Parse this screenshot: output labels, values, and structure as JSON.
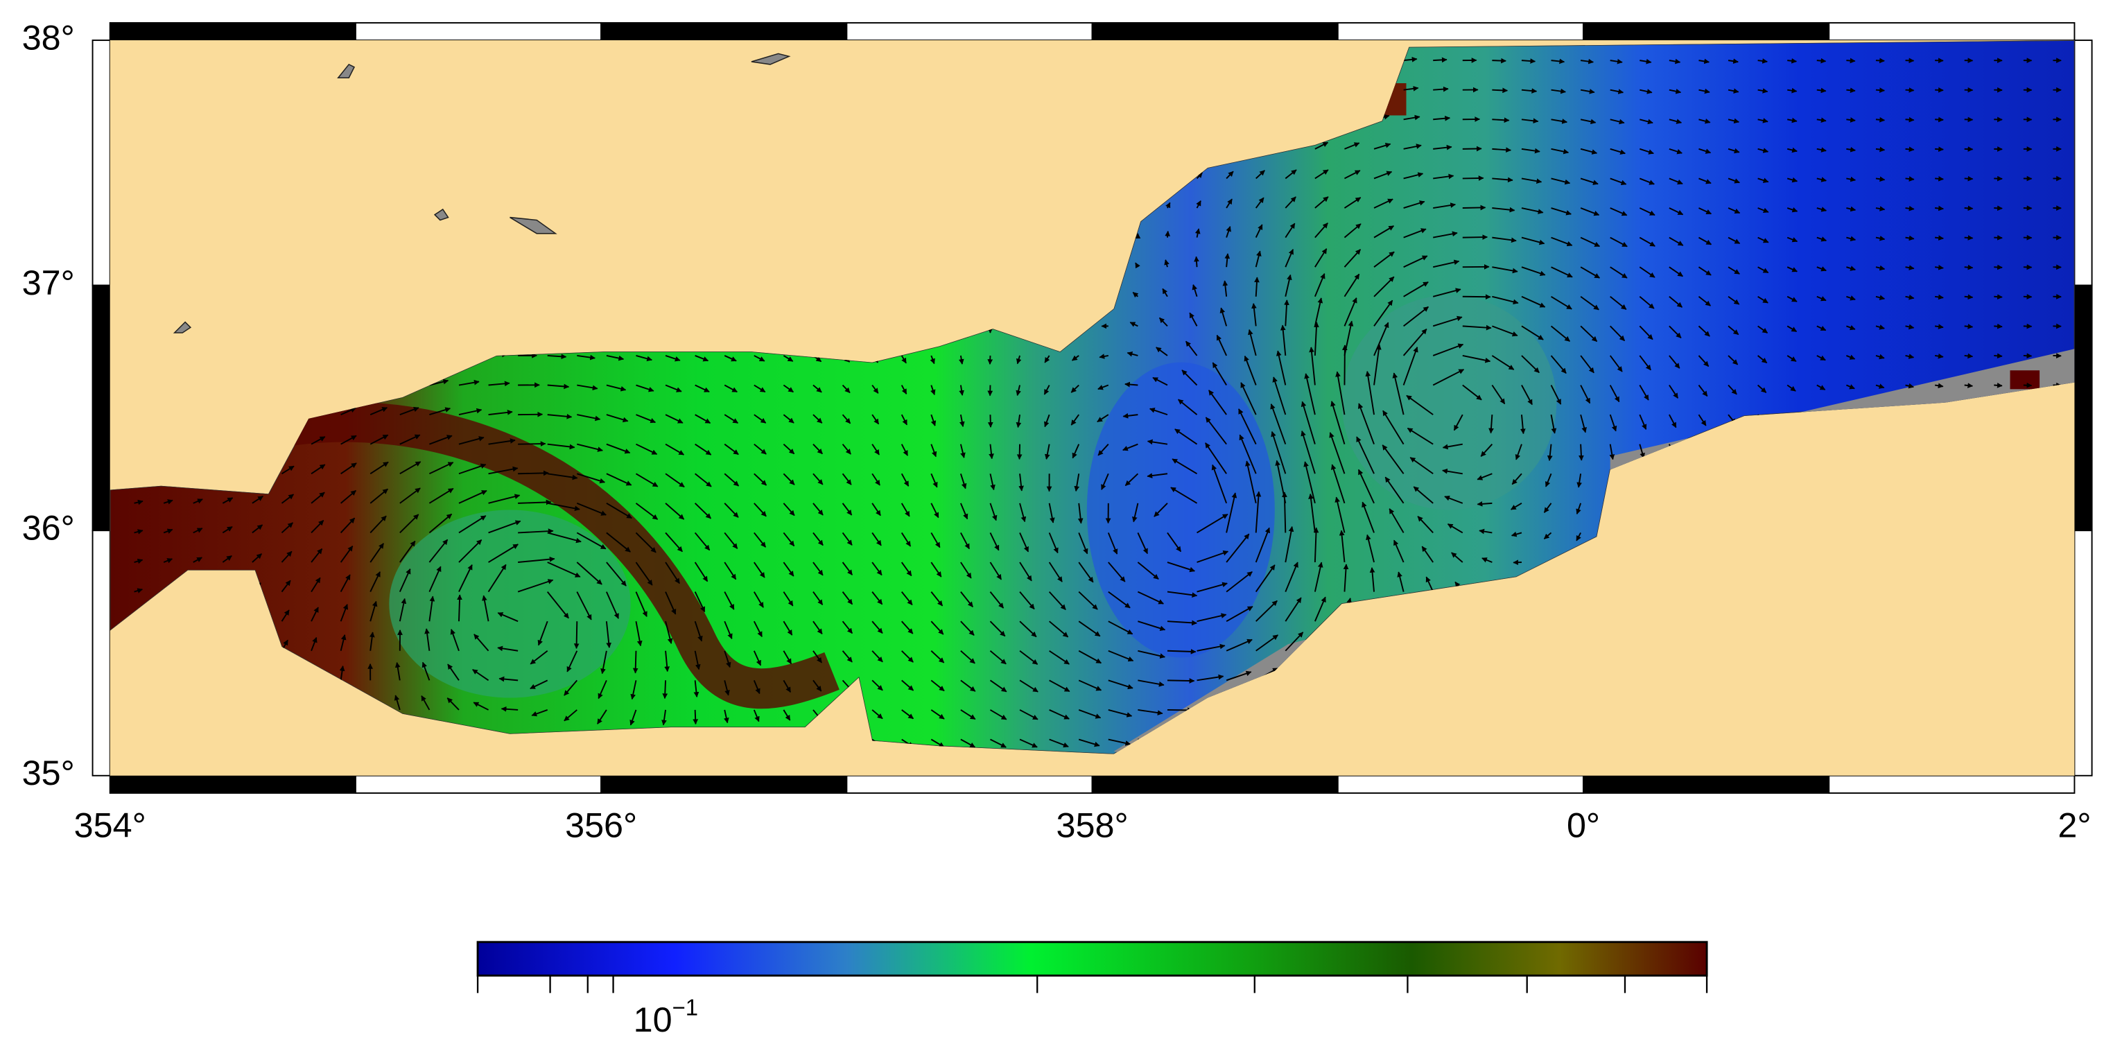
{
  "map": {
    "lat_labels": [
      "38°",
      "37°",
      "36°",
      "35°"
    ],
    "lon_labels": [
      "354°",
      "356°",
      "358°",
      "0°",
      "2°"
    ],
    "colorbar": {
      "label": {
        "base": "10",
        "exponent": "−1"
      }
    }
  }
}
